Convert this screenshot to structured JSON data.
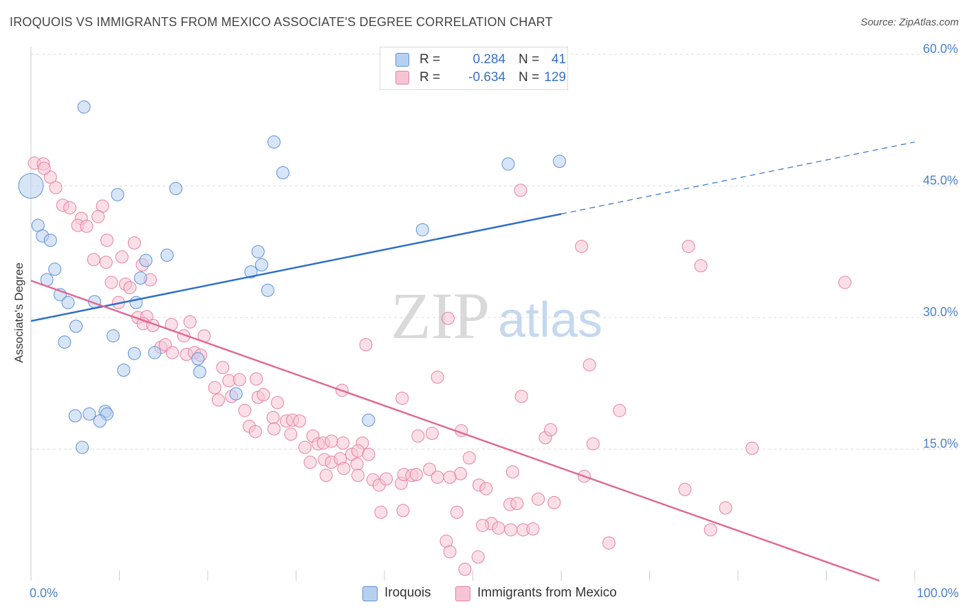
{
  "title": "IROQUOIS VS IMMIGRANTS FROM MEXICO ASSOCIATE'S DEGREE CORRELATION CHART",
  "source": "Source: ZipAtlas.com",
  "watermark": {
    "zip": "ZIP",
    "atlas": "atlas"
  },
  "colors": {
    "blue": "#5b8fd6",
    "blue_fill": "#b8d0f0",
    "blue_line": "#2e6fc7",
    "pink": "#e57fa2",
    "pink_fill": "#f7c4d4",
    "pink_line": "#e06893",
    "tick_text": "#4a7fcc",
    "grid": "#dcdcdc"
  },
  "legend": {
    "rows": [
      {
        "r_label": "R =",
        "r_value": "0.284",
        "n_label": "N =",
        "n_value": "41",
        "color": "blue"
      },
      {
        "r_label": "R =",
        "r_value": "-0.634",
        "n_label": "N =",
        "n_value": "129",
        "color": "pink"
      }
    ]
  },
  "bottom_legend": [
    {
      "label": "Iroquois",
      "color": "blue"
    },
    {
      "label": "Immigrants from Mexico",
      "color": "pink"
    }
  ],
  "chart_data": {
    "type": "scatter",
    "title": "IROQUOIS VS IMMIGRANTS FROM MEXICO ASSOCIATE'S DEGREE CORRELATION CHART",
    "xlabel": "",
    "ylabel": "Associate's Degree",
    "xlim": [
      0,
      100
    ],
    "ylim": [
      0,
      60
    ],
    "x_tick_labels": [
      "0.0%",
      "100.0%"
    ],
    "y_ticks": [
      15,
      30,
      45,
      60
    ],
    "y_tick_labels": [
      "15.0%",
      "30.0%",
      "45.0%",
      "60.0%"
    ],
    "grid": true,
    "legend_position": "top-center",
    "series": [
      {
        "name": "Iroquois",
        "R": 0.284,
        "N": 41,
        "trend": {
          "x0": 0,
          "y0": 29.6,
          "x1": 60,
          "y1": 41.8,
          "dash_to_x": 100,
          "dash_to_y": 50.0
        },
        "points": [
          [
            0.0,
            45.0
          ],
          [
            6.0,
            54.0
          ],
          [
            27.5,
            50.0
          ],
          [
            28.5,
            46.5
          ],
          [
            9.8,
            44.0
          ],
          [
            16.4,
            44.7
          ],
          [
            54.0,
            47.5
          ],
          [
            59.8,
            47.8
          ],
          [
            0.8,
            40.5
          ],
          [
            1.3,
            39.3
          ],
          [
            2.2,
            38.8
          ],
          [
            44.3,
            40.0
          ],
          [
            13.0,
            36.5
          ],
          [
            15.4,
            37.1
          ],
          [
            25.7,
            37.5
          ],
          [
            26.1,
            36.0
          ],
          [
            2.7,
            35.5
          ],
          [
            1.8,
            34.3
          ],
          [
            12.4,
            34.5
          ],
          [
            24.9,
            35.2
          ],
          [
            3.3,
            32.6
          ],
          [
            4.2,
            31.7
          ],
          [
            7.2,
            31.8
          ],
          [
            11.9,
            31.7
          ],
          [
            26.8,
            33.1
          ],
          [
            5.1,
            29.0
          ],
          [
            3.8,
            27.2
          ],
          [
            9.3,
            27.9
          ],
          [
            11.7,
            25.9
          ],
          [
            14.0,
            26.0
          ],
          [
            18.9,
            25.3
          ],
          [
            10.5,
            24.0
          ],
          [
            19.1,
            23.8
          ],
          [
            23.2,
            21.3
          ],
          [
            5.0,
            18.8
          ],
          [
            6.6,
            19.0
          ],
          [
            8.4,
            19.3
          ],
          [
            8.6,
            19.0
          ],
          [
            7.8,
            18.2
          ],
          [
            38.2,
            18.3
          ],
          [
            5.8,
            15.2
          ]
        ]
      },
      {
        "name": "Immigrants from Mexico",
        "R": -0.634,
        "N": 129,
        "trend": {
          "x0": 0,
          "y0": 34.2,
          "x1": 96,
          "y1": 0.0
        },
        "points": [
          [
            0.4,
            47.6
          ],
          [
            1.4,
            47.5
          ],
          [
            2.2,
            46.0
          ],
          [
            1.5,
            47.0
          ],
          [
            2.8,
            44.8
          ],
          [
            3.6,
            42.8
          ],
          [
            4.4,
            42.5
          ],
          [
            8.1,
            42.7
          ],
          [
            5.7,
            41.3
          ],
          [
            7.6,
            41.5
          ],
          [
            5.3,
            40.5
          ],
          [
            6.3,
            40.4
          ],
          [
            8.6,
            38.8
          ],
          [
            11.7,
            38.5
          ],
          [
            7.1,
            36.6
          ],
          [
            8.5,
            36.3
          ],
          [
            10.3,
            36.9
          ],
          [
            12.6,
            36.0
          ],
          [
            9.1,
            34.0
          ],
          [
            10.7,
            33.8
          ],
          [
            11.2,
            33.4
          ],
          [
            13.5,
            34.3
          ],
          [
            9.9,
            31.7
          ],
          [
            12.1,
            30.0
          ],
          [
            13.1,
            30.1
          ],
          [
            12.7,
            29.3
          ],
          [
            13.8,
            29.1
          ],
          [
            15.9,
            29.2
          ],
          [
            18.0,
            29.5
          ],
          [
            14.7,
            26.6
          ],
          [
            15.2,
            26.9
          ],
          [
            16.0,
            26.0
          ],
          [
            17.3,
            27.9
          ],
          [
            19.6,
            27.9
          ],
          [
            17.6,
            25.8
          ],
          [
            18.5,
            26.0
          ],
          [
            19.2,
            25.7
          ],
          [
            22.4,
            22.8
          ],
          [
            21.7,
            24.3
          ],
          [
            20.8,
            22.0
          ],
          [
            23.6,
            22.9
          ],
          [
            25.5,
            23.0
          ],
          [
            21.2,
            20.6
          ],
          [
            22.7,
            21.0
          ],
          [
            24.2,
            19.4
          ],
          [
            25.7,
            20.9
          ],
          [
            26.3,
            21.2
          ],
          [
            27.9,
            20.3
          ],
          [
            27.4,
            18.6
          ],
          [
            28.9,
            18.2
          ],
          [
            29.6,
            18.3
          ],
          [
            30.4,
            18.2
          ],
          [
            24.7,
            17.6
          ],
          [
            25.4,
            17.0
          ],
          [
            27.5,
            17.3
          ],
          [
            29.4,
            16.7
          ],
          [
            31.0,
            15.2
          ],
          [
            31.9,
            16.5
          ],
          [
            32.5,
            15.6
          ],
          [
            33.1,
            15.7
          ],
          [
            35.3,
            15.7
          ],
          [
            37.5,
            15.7
          ],
          [
            34.0,
            15.9
          ],
          [
            31.6,
            13.5
          ],
          [
            33.2,
            13.8
          ],
          [
            34.0,
            13.5
          ],
          [
            35.0,
            13.9
          ],
          [
            36.3,
            14.4
          ],
          [
            37.0,
            14.8
          ],
          [
            38.2,
            14.4
          ],
          [
            36.9,
            13.3
          ],
          [
            33.4,
            12.0
          ],
          [
            35.4,
            12.8
          ],
          [
            37.0,
            12.0
          ],
          [
            38.7,
            11.5
          ],
          [
            39.4,
            10.9
          ],
          [
            40.2,
            11.6
          ],
          [
            41.9,
            11.1
          ],
          [
            42.2,
            12.1
          ],
          [
            43.1,
            12.0
          ],
          [
            43.6,
            12.1
          ],
          [
            45.1,
            12.7
          ],
          [
            46.0,
            11.8
          ],
          [
            48.6,
            12.2
          ],
          [
            47.4,
            11.8
          ],
          [
            49.6,
            14.0
          ],
          [
            50.7,
            10.9
          ],
          [
            51.5,
            10.5
          ],
          [
            54.2,
            8.7
          ],
          [
            55.0,
            8.8
          ],
          [
            54.5,
            12.4
          ],
          [
            57.4,
            9.3
          ],
          [
            59.2,
            8.9
          ],
          [
            58.2,
            16.3
          ],
          [
            58.8,
            17.2
          ],
          [
            55.5,
            21.0
          ],
          [
            43.8,
            16.5
          ],
          [
            45.4,
            16.8
          ],
          [
            48.7,
            17.1
          ],
          [
            39.6,
            7.8
          ],
          [
            42.1,
            8.0
          ],
          [
            48.2,
            7.8
          ],
          [
            52.1,
            6.5
          ],
          [
            51.1,
            6.3
          ],
          [
            52.9,
            6.0
          ],
          [
            54.3,
            5.8
          ],
          [
            55.7,
            5.8
          ],
          [
            56.8,
            5.9
          ],
          [
            47.0,
            4.5
          ],
          [
            47.4,
            3.3
          ],
          [
            50.6,
            2.7
          ],
          [
            49.1,
            1.3
          ],
          [
            62.6,
            11.9
          ],
          [
            63.6,
            15.6
          ],
          [
            63.2,
            24.6
          ],
          [
            66.6,
            19.4
          ],
          [
            74.0,
            10.4
          ],
          [
            78.6,
            8.3
          ],
          [
            76.9,
            5.8
          ],
          [
            65.4,
            4.3
          ],
          [
            81.6,
            15.1
          ],
          [
            74.4,
            38.1
          ],
          [
            75.8,
            35.9
          ],
          [
            62.3,
            38.1
          ],
          [
            92.1,
            34.0
          ],
          [
            55.4,
            44.5
          ],
          [
            37.9,
            26.9
          ],
          [
            42.0,
            20.8
          ],
          [
            46.0,
            23.2
          ],
          [
            47.2,
            29.9
          ],
          [
            35.2,
            21.7
          ]
        ]
      }
    ]
  }
}
